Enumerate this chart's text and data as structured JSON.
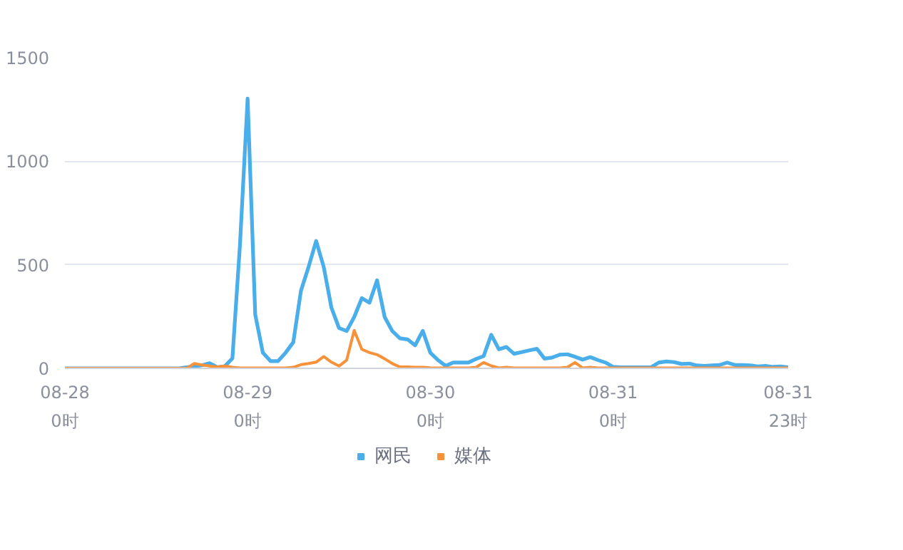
{
  "chart_data": {
    "type": "line",
    "series": [
      {
        "name": "网民",
        "color": "#4aaeea",
        "values": [
          0,
          0,
          0,
          0,
          0,
          0,
          0,
          0,
          0,
          0,
          0,
          0,
          0,
          0,
          0,
          0,
          5,
          10,
          15,
          25,
          5,
          10,
          48,
          600,
          1303,
          259,
          76,
          35,
          35,
          76,
          126,
          374,
          489,
          615,
          489,
          294,
          195,
          180,
          248,
          339,
          317,
          425,
          248,
          180,
          145,
          140,
          111,
          181,
          75,
          40,
          12,
          28,
          28,
          28,
          45,
          59,
          162,
          92,
          103,
          70,
          78,
          87,
          94,
          47,
          52,
          66,
          68,
          56,
          42,
          54,
          40,
          28,
          7,
          5,
          5,
          5,
          5,
          5,
          28,
          33,
          30,
          21,
          23,
          14,
          12,
          14,
          16,
          28,
          16,
          16,
          14,
          9,
          12,
          7,
          9,
          5
        ]
      },
      {
        "name": "媒体",
        "color": "#f7923a",
        "values": [
          0,
          0,
          0,
          0,
          0,
          0,
          0,
          0,
          0,
          0,
          0,
          0,
          0,
          0,
          0,
          0,
          0,
          23,
          16,
          11,
          7,
          11,
          5,
          2,
          2,
          2,
          2,
          2,
          2,
          2,
          5,
          18,
          23,
          30,
          57,
          30,
          11,
          39,
          183,
          92,
          76,
          66,
          46,
          23,
          7,
          7,
          5,
          5,
          3,
          2,
          2,
          2,
          2,
          2,
          5,
          28,
          12,
          2,
          5,
          2,
          2,
          2,
          2,
          2,
          2,
          2,
          5,
          28,
          2,
          5,
          2,
          2,
          2,
          2,
          2,
          2,
          2,
          2,
          2,
          2,
          2,
          2,
          2,
          2,
          2,
          2,
          2,
          2,
          2,
          2,
          2,
          2,
          2,
          2,
          2,
          2
        ]
      }
    ],
    "categories": [
      "08-28\n0时",
      null,
      null,
      null,
      null,
      null,
      null,
      null,
      null,
      null,
      null,
      null,
      null,
      null,
      null,
      null,
      null,
      null,
      null,
      null,
      null,
      null,
      null,
      null,
      "08-29\n0时",
      null,
      null,
      null,
      null,
      null,
      null,
      null,
      null,
      null,
      null,
      null,
      null,
      null,
      null,
      null,
      null,
      null,
      null,
      null,
      null,
      null,
      null,
      null,
      "08-30\n0时",
      null,
      null,
      null,
      null,
      null,
      null,
      null,
      null,
      null,
      null,
      null,
      null,
      null,
      null,
      null,
      null,
      null,
      null,
      null,
      null,
      null,
      null,
      null,
      "08-31\n0时",
      null,
      null,
      null,
      null,
      null,
      null,
      null,
      null,
      null,
      null,
      null,
      null,
      null,
      null,
      null,
      null,
      null,
      null,
      null,
      null,
      null,
      null,
      "08-31\n23时"
    ],
    "ylim": [
      0,
      1500
    ],
    "yticks": [
      0,
      500,
      1000,
      1500
    ],
    "grid": "y",
    "legend": "bottom",
    "marker": "none",
    "line_style": "solid"
  }
}
